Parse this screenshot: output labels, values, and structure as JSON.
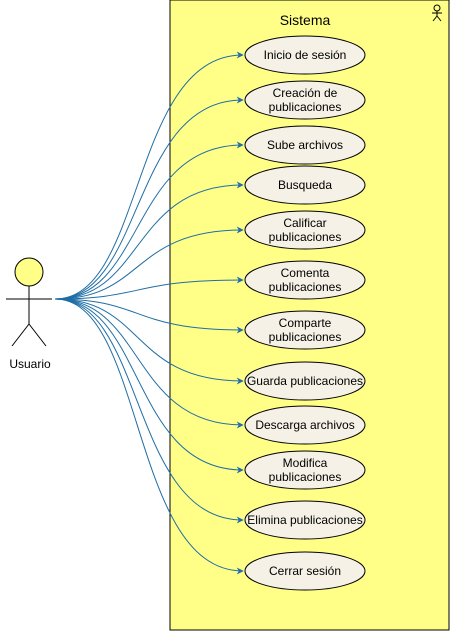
{
  "system": {
    "title": "Sistema",
    "fill": "#ffff88",
    "stroke": "#000000",
    "icon": "actor-icon"
  },
  "actor": {
    "label": "Usuario",
    "head_fill": "#ffff88",
    "stroke": "#000000"
  },
  "connector_color": "#1f6ea5",
  "use_case_style": {
    "fill": "#f5f1e6",
    "stroke": "#000000"
  },
  "use_cases": [
    {
      "id": "inicio-sesion",
      "lines": [
        "Inicio de sesión"
      ]
    },
    {
      "id": "creacion-publicaciones",
      "lines": [
        "Creación de",
        "publicaciones"
      ]
    },
    {
      "id": "sube-archivos",
      "lines": [
        "Sube archivos"
      ]
    },
    {
      "id": "busqueda",
      "lines": [
        "Busqueda"
      ]
    },
    {
      "id": "calificar-publicaciones",
      "lines": [
        "Calificar",
        "publicaciones"
      ]
    },
    {
      "id": "comenta-publicaciones",
      "lines": [
        "Comenta",
        "publicaciones"
      ]
    },
    {
      "id": "comparte-publicaciones",
      "lines": [
        "Comparte",
        "publicaciones"
      ]
    },
    {
      "id": "guarda-publicaciones",
      "lines": [
        "Guarda publicaciones"
      ]
    },
    {
      "id": "descarga-archivos",
      "lines": [
        "Descarga archivos"
      ]
    },
    {
      "id": "modifica-publicaciones",
      "lines": [
        "Modifica",
        "publicaciones"
      ]
    },
    {
      "id": "elimina-publicaciones",
      "lines": [
        "Elimina publicaciones"
      ]
    },
    {
      "id": "cerrar-sesion",
      "lines": [
        "Cerrar sesión"
      ]
    }
  ]
}
